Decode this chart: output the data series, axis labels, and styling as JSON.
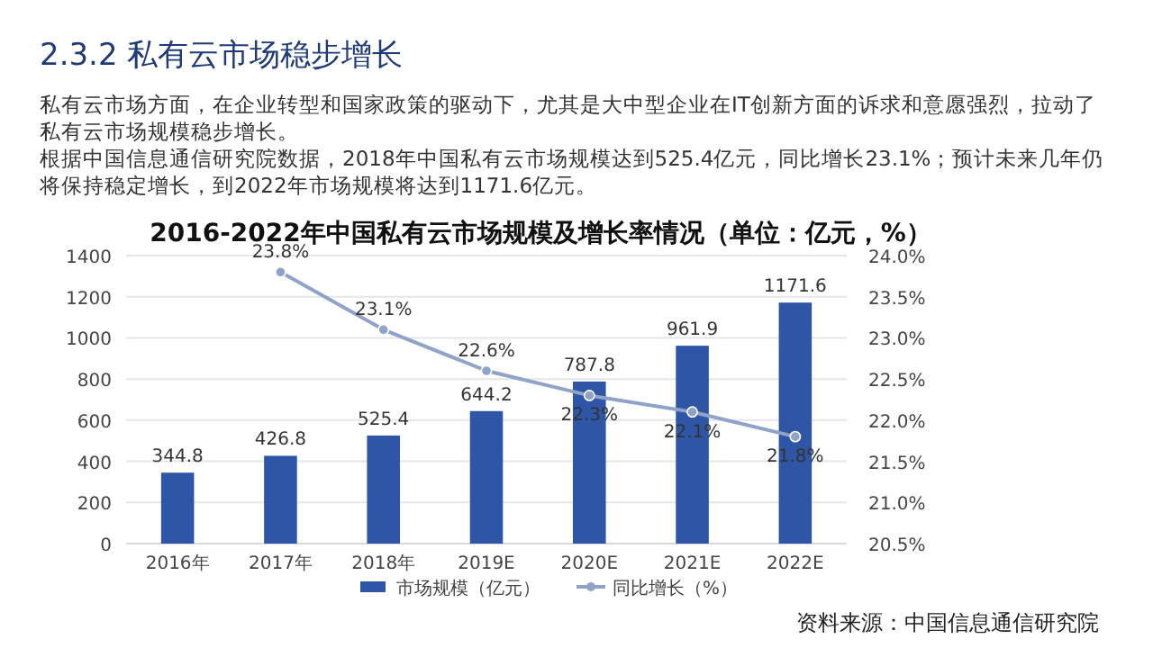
{
  "chart_data": {
    "type": "bar",
    "title": "2016-2022年中国私有云市场规模及增长率情况（单位：亿元，%）",
    "annotations": [
      "2.3.2 私有云市场稳步增长",
      "私有云市场方面，在企业转型和国家政策的驱动下，尤其是大中型企业在IT创新方面的诉求和意愿强烈，拉动了私有云市场规模稳步增长。",
      "根据中国信息通信研究院数据，2018年中国私有云市场规模达到525.4亿元，同比增长23.1%；预计未来几年仍将保持稳定增长，到2022年市场规模将达到1171.6亿元。",
      "资料来源：中国信息通信研究院"
    ],
    "categories": [
      "2016年",
      "2017年",
      "2018年",
      "2019E",
      "2020E",
      "2021E",
      "2022E"
    ],
    "series": [
      {
        "name": "市场规模（亿元）",
        "color": "#2f56a6",
        "values": [
          344.8,
          426.8,
          525.4,
          644.2,
          787.8,
          961.9,
          1171.6
        ],
        "value_labels": [
          "344.8",
          "426.8",
          "525.4",
          "644.2",
          "787.8",
          "961.9",
          "1171.6"
        ]
      },
      {
        "name": "同比增长（%）",
        "type": "line",
        "axis": "y2",
        "color": "#8fa3c8",
        "marker": "circle",
        "values": [
          null,
          23.8,
          23.1,
          22.6,
          22.3,
          22.1,
          21.8
        ],
        "value_labels": [
          null,
          "23.8%",
          "23.1%",
          "22.6%",
          "22.3%",
          "22.1%",
          "21.8%"
        ]
      }
    ],
    "ylim": [
      0,
      1400
    ],
    "yticks": [
      0,
      200,
      400,
      600,
      800,
      1000,
      1200,
      1400
    ],
    "y2lim": [
      20.5,
      24.0
    ],
    "y2ticks": [
      {
        "value": 20.5,
        "label": "20.5%"
      },
      {
        "value": 21.0,
        "label": "21.0%"
      },
      {
        "value": 21.5,
        "label": "21.5%"
      },
      {
        "value": 22.0,
        "label": "22.0%"
      },
      {
        "value": 22.5,
        "label": "22.5%"
      },
      {
        "value": 23.0,
        "label": "23.0%"
      },
      {
        "value": 23.5,
        "label": "23.5%"
      },
      {
        "value": 24.0,
        "label": "24.0%"
      }
    ],
    "grid": "y",
    "legend": "bottom"
  }
}
